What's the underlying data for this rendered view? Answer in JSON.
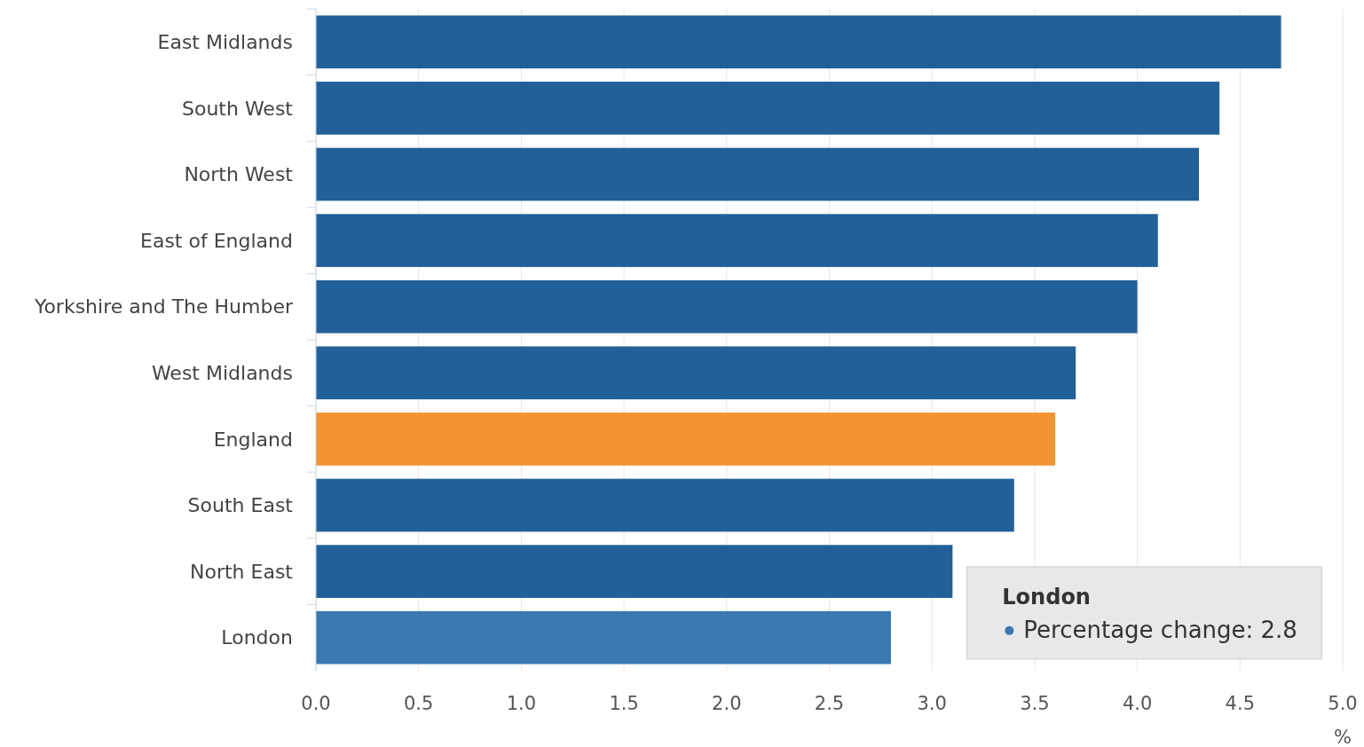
{
  "chart_data": {
    "type": "bar",
    "orientation": "horizontal",
    "xlabel": "%",
    "categories": [
      "East Midlands",
      "South West",
      "North West",
      "East of England",
      "Yorkshire and The Humber",
      "West Midlands",
      "England",
      "South East",
      "North East",
      "London"
    ],
    "values": [
      4.7,
      4.4,
      4.3,
      4.1,
      4.0,
      3.7,
      3.6,
      3.4,
      3.1,
      2.8
    ],
    "colors": [
      "#22609a",
      "#22609a",
      "#22609a",
      "#22609a",
      "#22609a",
      "#22609a",
      "#f39431",
      "#22609a",
      "#22609a",
      "#3a78b0"
    ],
    "xlim": [
      0,
      5
    ],
    "xticks": [
      {
        "value": 0,
        "label": "0.0"
      },
      {
        "value": 0.5,
        "label": "0.5"
      },
      {
        "value": 1,
        "label": "1.0"
      },
      {
        "value": 1.5,
        "label": "1.5"
      },
      {
        "value": 2,
        "label": "2.0"
      },
      {
        "value": 2.5,
        "label": "2.5"
      },
      {
        "value": 3,
        "label": "3.0"
      },
      {
        "value": 3.5,
        "label": "3.5"
      },
      {
        "value": 4,
        "label": "4.0"
      },
      {
        "value": 4.5,
        "label": "4.5"
      },
      {
        "value": 5,
        "label": "5.0"
      }
    ],
    "grid": "x",
    "annotations": [
      "London",
      "Percentage change: 2.8"
    ]
  }
}
